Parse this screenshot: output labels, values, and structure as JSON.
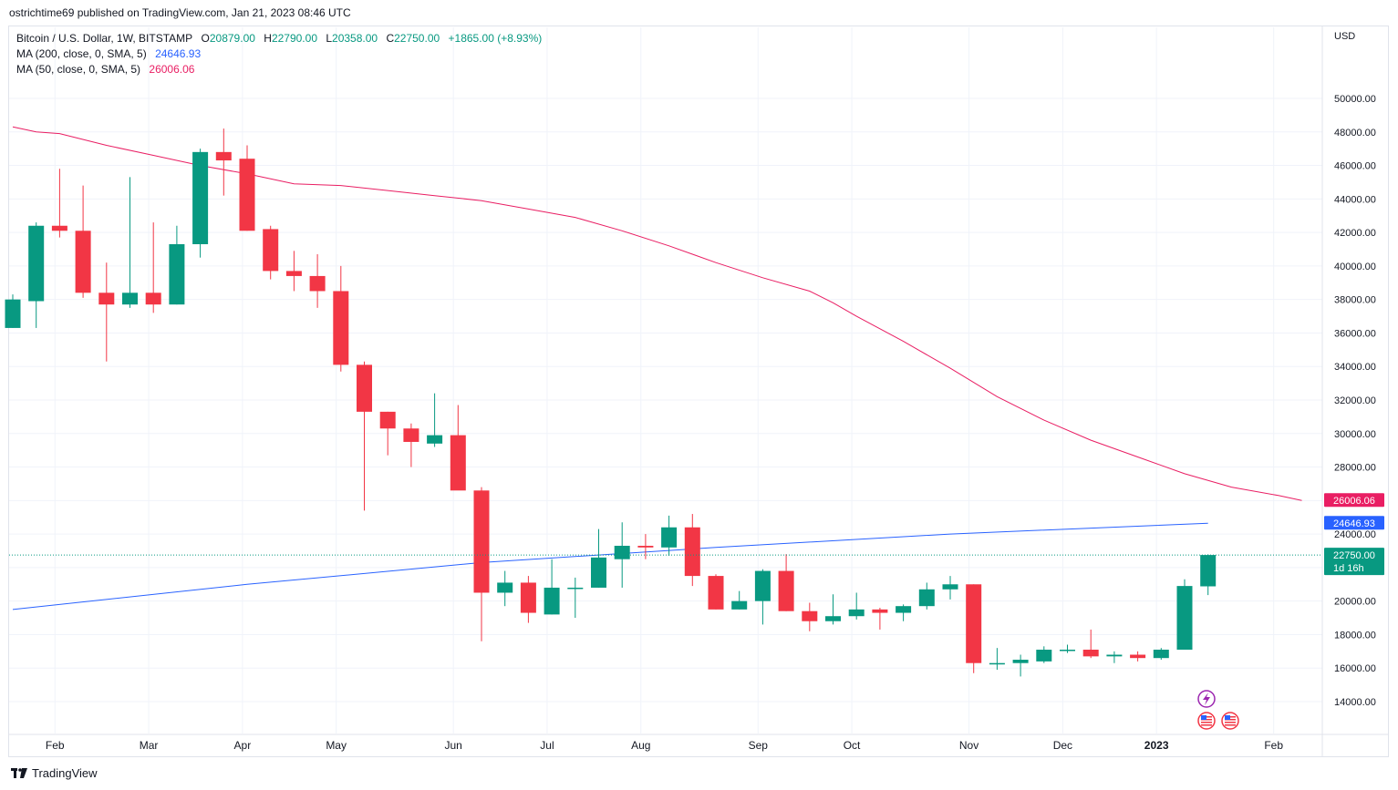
{
  "header": {
    "published": "ostrichtime69 published on TradingView.com, Jan 21, 2023 08:46 UTC"
  },
  "legend": {
    "symbol": "Bitcoin / U.S. Dollar, 1W, BITSTAMP",
    "open_label": "O",
    "open": "20879.00",
    "high_label": "H",
    "high": "22790.00",
    "low_label": "L",
    "low": "20358.00",
    "close_label": "C",
    "close": "22750.00",
    "change": "+1865.00 (+8.93%)",
    "ma200_label": "MA (200, close, 0, SMA, 5)",
    "ma200_value": "24646.93",
    "ma50_label": "MA (50, close, 0, SMA, 5)",
    "ma50_value": "26006.06"
  },
  "axis": {
    "currency": "USD"
  },
  "footer": {
    "brand": "TradingView"
  },
  "colors": {
    "up": "#089981",
    "down": "#f23645",
    "ma200": "#2962ff",
    "ma50": "#e91e63",
    "grid": "#f0f3fa",
    "axis_text": "#131722"
  },
  "chart_data": {
    "type": "candlestick",
    "ylim": [
      12500,
      51500
    ],
    "y_ticks": [
      14000,
      16000,
      18000,
      20000,
      22000,
      24000,
      26000,
      28000,
      30000,
      32000,
      34000,
      36000,
      38000,
      40000,
      42000,
      44000,
      46000,
      48000,
      50000
    ],
    "y_tick_labels": [
      "14000.00",
      "16000.00",
      "18000.00",
      "20000.00",
      "22000.00",
      "24000.00",
      "26000.00",
      "28000.00",
      "30000.00",
      "32000.00",
      "34000.00",
      "36000.00",
      "38000.00",
      "40000.00",
      "42000.00",
      "44000.00",
      "46000.00",
      "48000.00",
      "50000.00"
    ],
    "x_labels": [
      {
        "label": "Feb",
        "week": 1.8
      },
      {
        "label": "Mar",
        "week": 5.8
      },
      {
        "label": "Apr",
        "week": 9.8
      },
      {
        "label": "May",
        "week": 13.8
      },
      {
        "label": "Jun",
        "week": 18.8
      },
      {
        "label": "Jul",
        "week": 22.8
      },
      {
        "label": "Aug",
        "week": 26.8
      },
      {
        "label": "Sep",
        "week": 31.8
      },
      {
        "label": "Oct",
        "week": 35.8
      },
      {
        "label": "Nov",
        "week": 40.8
      },
      {
        "label": "Dec",
        "week": 44.8
      },
      {
        "label": "2023",
        "week": 48.8
      },
      {
        "label": "Feb",
        "week": 53.8
      }
    ],
    "grid": true,
    "candles": [
      {
        "o": 36300,
        "h": 38300,
        "l": 36300,
        "c": 38000
      },
      {
        "o": 37900,
        "h": 42600,
        "l": 36300,
        "c": 42400
      },
      {
        "o": 42400,
        "h": 45800,
        "l": 41700,
        "c": 42100
      },
      {
        "o": 42100,
        "h": 44800,
        "l": 38100,
        "c": 38400
      },
      {
        "o": 38400,
        "h": 40200,
        "l": 34300,
        "c": 37700
      },
      {
        "o": 37700,
        "h": 45300,
        "l": 37500,
        "c": 38400
      },
      {
        "o": 38400,
        "h": 42600,
        "l": 37200,
        "c": 37700
      },
      {
        "o": 37700,
        "h": 42400,
        "l": 37700,
        "c": 41300
      },
      {
        "o": 41300,
        "h": 47000,
        "l": 40500,
        "c": 46800
      },
      {
        "o": 46800,
        "h": 48200,
        "l": 44200,
        "c": 46300
      },
      {
        "o": 46400,
        "h": 47200,
        "l": 42100,
        "c": 42100
      },
      {
        "o": 42200,
        "h": 42400,
        "l": 39200,
        "c": 39700
      },
      {
        "o": 39700,
        "h": 40900,
        "l": 38500,
        "c": 39400
      },
      {
        "o": 39400,
        "h": 40700,
        "l": 37500,
        "c": 38500
      },
      {
        "o": 38500,
        "h": 40000,
        "l": 33700,
        "c": 34100
      },
      {
        "o": 34100,
        "h": 34300,
        "l": 25400,
        "c": 31300
      },
      {
        "o": 31300,
        "h": 31300,
        "l": 28700,
        "c": 30300
      },
      {
        "o": 30300,
        "h": 30600,
        "l": 28000,
        "c": 29500
      },
      {
        "o": 29400,
        "h": 32400,
        "l": 29200,
        "c": 29900
      },
      {
        "o": 29900,
        "h": 31700,
        "l": 26700,
        "c": 26600
      },
      {
        "o": 26600,
        "h": 26800,
        "l": 17600,
        "c": 20500
      },
      {
        "o": 20500,
        "h": 21800,
        "l": 19700,
        "c": 21100
      },
      {
        "o": 21100,
        "h": 21500,
        "l": 18700,
        "c": 19300
      },
      {
        "o": 19200,
        "h": 22500,
        "l": 19200,
        "c": 20800
      },
      {
        "o": 20800,
        "h": 21400,
        "l": 19000,
        "c": 20800
      },
      {
        "o": 20800,
        "h": 24300,
        "l": 20800,
        "c": 22600
      },
      {
        "o": 22500,
        "h": 24700,
        "l": 20800,
        "c": 23300
      },
      {
        "o": 23300,
        "h": 24000,
        "l": 22500,
        "c": 23200
      },
      {
        "o": 23200,
        "h": 25100,
        "l": 22700,
        "c": 24400
      },
      {
        "o": 24400,
        "h": 25200,
        "l": 20900,
        "c": 21500
      },
      {
        "o": 21500,
        "h": 21600,
        "l": 19500,
        "c": 19500
      },
      {
        "o": 19500,
        "h": 20600,
        "l": 19500,
        "c": 20000
      },
      {
        "o": 20000,
        "h": 21900,
        "l": 18600,
        "c": 21800
      },
      {
        "o": 21800,
        "h": 22800,
        "l": 19400,
        "c": 19400
      },
      {
        "o": 19400,
        "h": 19900,
        "l": 18200,
        "c": 18800
      },
      {
        "o": 18800,
        "h": 20400,
        "l": 18600,
        "c": 19100
      },
      {
        "o": 19100,
        "h": 20500,
        "l": 18900,
        "c": 19500
      },
      {
        "o": 19500,
        "h": 19600,
        "l": 18300,
        "c": 19300
      },
      {
        "o": 19300,
        "h": 19800,
        "l": 18800,
        "c": 19700
      },
      {
        "o": 19700,
        "h": 21100,
        "l": 19500,
        "c": 20700
      },
      {
        "o": 20700,
        "h": 21500,
        "l": 20100,
        "c": 21000
      },
      {
        "o": 21000,
        "h": 21000,
        "l": 15700,
        "c": 16300
      },
      {
        "o": 16300,
        "h": 17200,
        "l": 15900,
        "c": 16300
      },
      {
        "o": 16300,
        "h": 16800,
        "l": 15500,
        "c": 16500
      },
      {
        "o": 16400,
        "h": 17300,
        "l": 16300,
        "c": 17100
      },
      {
        "o": 17100,
        "h": 17400,
        "l": 16900,
        "c": 17100
      },
      {
        "o": 17100,
        "h": 18300,
        "l": 16600,
        "c": 16700
      },
      {
        "o": 16700,
        "h": 17000,
        "l": 16300,
        "c": 16800
      },
      {
        "o": 16800,
        "h": 17000,
        "l": 16400,
        "c": 16600
      },
      {
        "o": 16600,
        "h": 17200,
        "l": 16500,
        "c": 17100
      },
      {
        "o": 17100,
        "h": 21300,
        "l": 17100,
        "c": 20900
      },
      {
        "o": 20879,
        "h": 22790,
        "l": 20358,
        "c": 22750
      }
    ],
    "ma200": {
      "name": "MA (200, close, 0, SMA, 5)",
      "points": [
        [
          0,
          19500
        ],
        [
          10,
          21000
        ],
        [
          20,
          22300
        ],
        [
          30,
          23200
        ],
        [
          40,
          24000
        ],
        [
          51,
          24650
        ]
      ]
    },
    "ma50": {
      "name": "MA (50, close, 0, SMA, 5)",
      "points": [
        [
          0,
          48300
        ],
        [
          1,
          48000
        ],
        [
          2,
          47900
        ],
        [
          4,
          47200
        ],
        [
          6,
          46600
        ],
        [
          8,
          46000
        ],
        [
          10,
          45500
        ],
        [
          12,
          44900
        ],
        [
          14,
          44800
        ],
        [
          16,
          44500
        ],
        [
          18,
          44200
        ],
        [
          20,
          43900
        ],
        [
          22,
          43400
        ],
        [
          24,
          42900
        ],
        [
          26,
          42100
        ],
        [
          28,
          41200
        ],
        [
          30,
          40200
        ],
        [
          32,
          39300
        ],
        [
          34,
          38500
        ],
        [
          35,
          37800
        ],
        [
          36,
          37000
        ],
        [
          38,
          35500
        ],
        [
          40,
          33900
        ],
        [
          42,
          32200
        ],
        [
          44,
          30800
        ],
        [
          46,
          29600
        ],
        [
          48,
          28600
        ],
        [
          50,
          27600
        ],
        [
          52,
          26800
        ],
        [
          54,
          26300
        ],
        [
          55,
          26006
        ]
      ]
    },
    "price_tags": [
      {
        "value": 26006.06,
        "label": "26006.06",
        "color": "#e91e63"
      },
      {
        "value": 24646.93,
        "label": "24646.93",
        "color": "#2962ff"
      },
      {
        "value": 22750.0,
        "label": "22750.00",
        "sublabel": "1d 16h",
        "color": "#089981"
      }
    ]
  }
}
